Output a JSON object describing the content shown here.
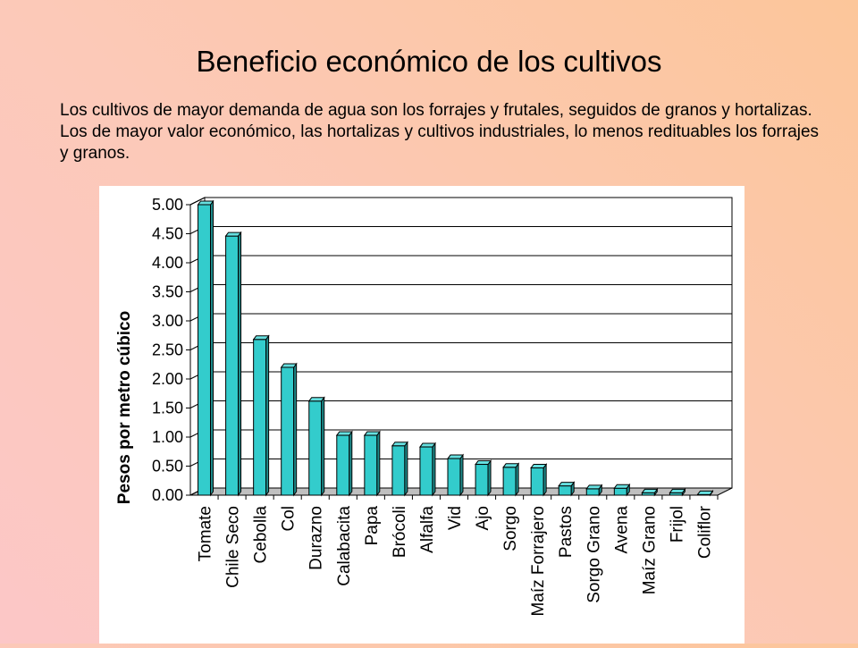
{
  "slide": {
    "title": "Beneficio económico de los cultivos",
    "body": "Los cultivos de mayor demanda de agua son los forrajes y frutales, seguidos de granos y hortalizas.  Los de mayor valor económico, las hortalizas y cultivos industriales, lo menos redituables los forrajes y granos."
  },
  "chart_data": {
    "type": "bar",
    "ylabel": "Pesos por metro cúbico",
    "ylim": [
      0,
      5
    ],
    "yticks": [
      "0.00",
      "0.50",
      "1.00",
      "1.50",
      "2.00",
      "2.50",
      "3.00",
      "3.50",
      "4.00",
      "4.50",
      "5.00"
    ],
    "grid": true,
    "bar_color": "#33cccc",
    "categories": [
      "Tomate",
      "Chile Seco",
      "Cebolla",
      "Col",
      "Durazno",
      "Calabacita",
      "Papa",
      "Brócoli",
      "Alfalfa",
      "Vid",
      "Ajo",
      "Sorgo",
      "Maíz Forrajero",
      "Pastos",
      "Sorgo Grano",
      "Avena",
      "Maíz Grano",
      "Frijol",
      "Coliflor"
    ],
    "values": [
      5.0,
      4.46,
      2.68,
      2.2,
      1.62,
      1.03,
      1.03,
      0.85,
      0.83,
      0.63,
      0.53,
      0.48,
      0.47,
      0.16,
      0.11,
      0.12,
      0.04,
      0.04,
      0.01
    ]
  }
}
